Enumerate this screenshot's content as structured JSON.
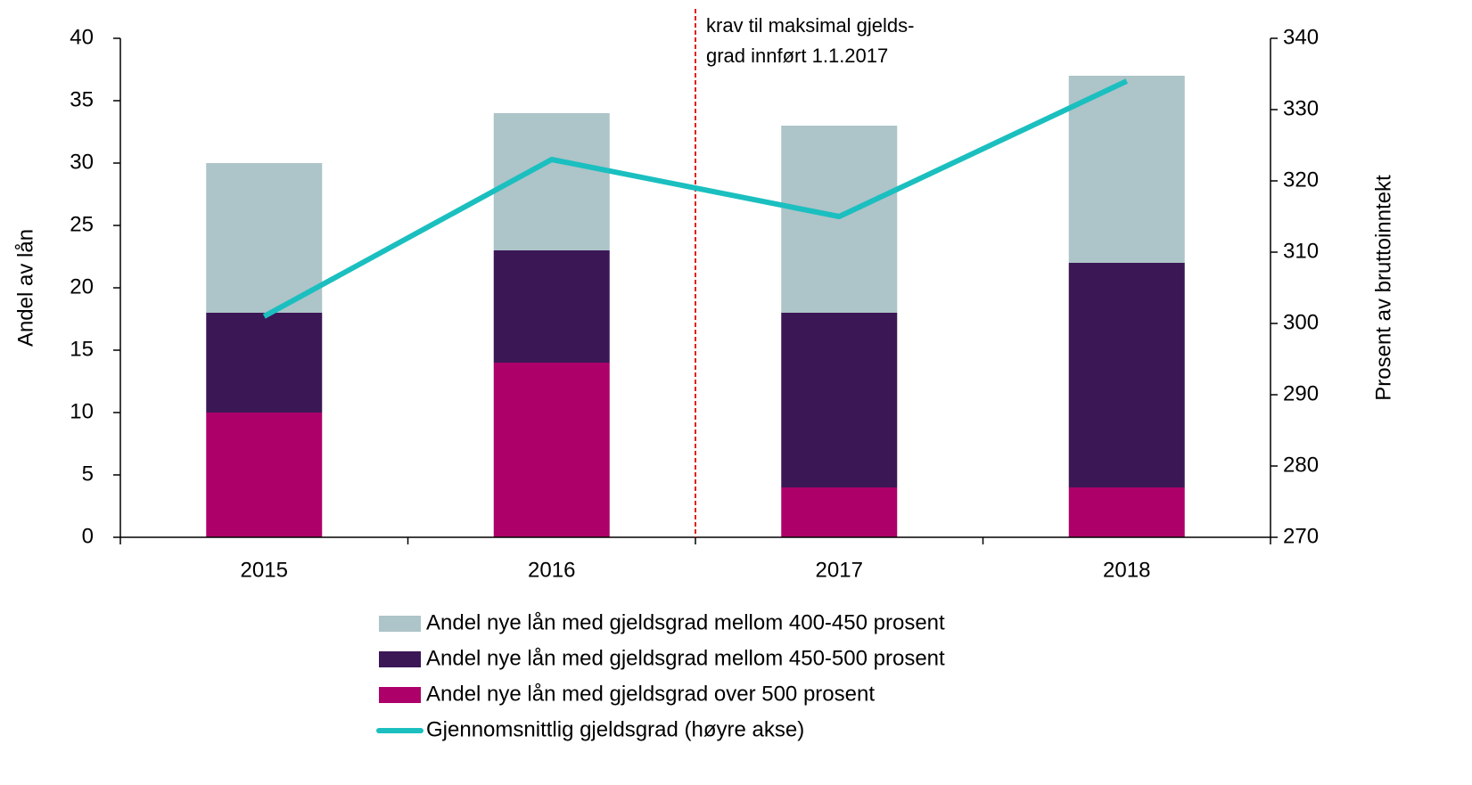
{
  "chart_data": {
    "type": "bar",
    "categories": [
      "2015",
      "2016",
      "2017",
      "2018"
    ],
    "stacked": true,
    "series": [
      {
        "name": "Andel nye lån med gjeldsgrad over 500 prosent",
        "color": "#ad0069",
        "values": [
          10,
          14,
          4,
          4
        ]
      },
      {
        "name": "Andel nye lån med gjeldsgrad mellom 450-500 prosent",
        "color": "#3b1756",
        "values": [
          8,
          9,
          14,
          18
        ]
      },
      {
        "name": "Andel nye lån med gjeldsgrad mellom 400-450 prosent",
        "color": "#adc4c8",
        "values": [
          12,
          11,
          15,
          15
        ]
      },
      {
        "name": "Gjennomsnittlig gjeldsgrad (høyre akse)",
        "type": "line",
        "axis": "y2",
        "color": "#1bbfbf",
        "values": [
          301,
          323,
          315,
          334
        ]
      }
    ],
    "ylabel": "Andel av lån",
    "y2label": "Prosent av bruttoinntekt",
    "ylim": [
      0,
      40
    ],
    "yticks": [
      0,
      5,
      10,
      15,
      20,
      25,
      30,
      35,
      40
    ],
    "y2lim": [
      270,
      340
    ],
    "y2ticks": [
      270,
      280,
      290,
      300,
      310,
      320,
      330,
      340
    ],
    "annotation": [
      "krav til maksimal gjelds-",
      "grad innført 1.1.2017"
    ],
    "annotation_color": "#e0201b",
    "grid": false,
    "legend": "bottom"
  }
}
